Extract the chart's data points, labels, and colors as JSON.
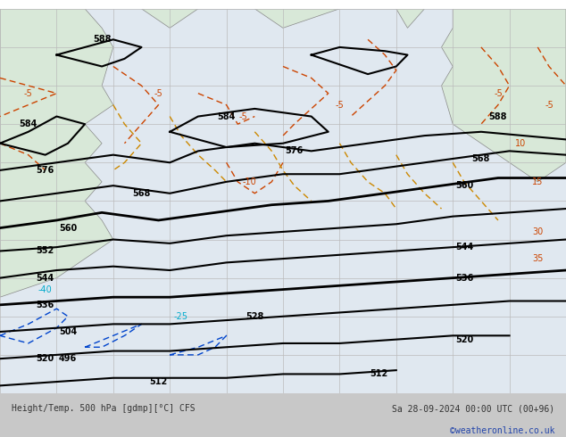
{
  "title_left": "Height/Temp. 500 hPa [gdmp][°C] CFS",
  "title_right": "Sa 28-09-2024 00:00 UTC (00+96)",
  "credit": "©weatheronline.co.uk",
  "background_color": "#e8e8e8",
  "map_background": "#d8e8d8",
  "ocean_color": "#e0e8f0",
  "grid_color": "#bbbbbb",
  "fig_width": 6.34,
  "fig_height": 4.9,
  "dpi": 100,
  "bottom_bar_color": "#c8c8c8",
  "bottom_text_color": "#333333",
  "credit_color": "#2244aa",
  "height_contour_color": "#000000",
  "temp_warm_color": "#cc4400",
  "temp_cold_color": "#0044cc",
  "temp_neg25_color": "#00aacc",
  "orange_contour_color": "#cc8800",
  "geopotential_labels": [
    "496",
    "504",
    "512",
    "520",
    "528",
    "536",
    "544",
    "552",
    "560",
    "568",
    "576",
    "584",
    "588"
  ],
  "temp_labels_warm": [
    "-5",
    "10",
    "15",
    "30",
    "35"
  ],
  "temp_labels_cold": [
    "-40"
  ]
}
